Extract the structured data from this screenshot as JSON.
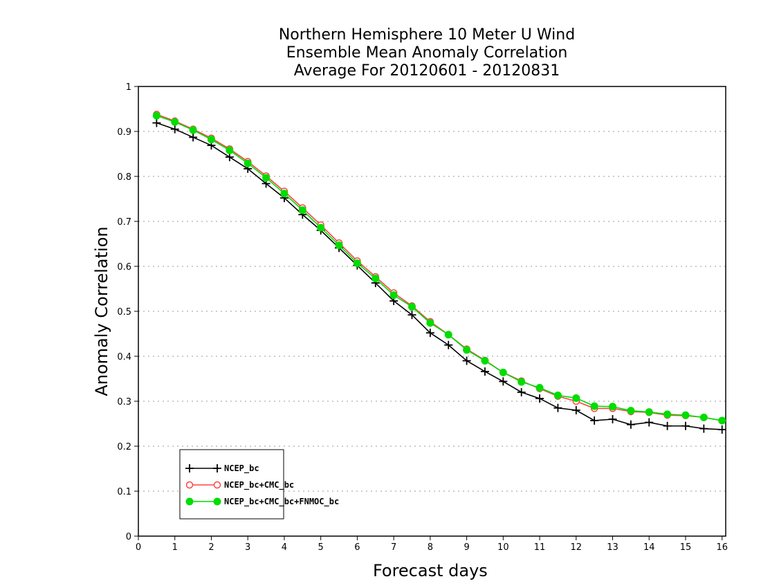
{
  "chart_data": {
    "type": "line",
    "title_lines": [
      "Northern Hemisphere 10 Meter U Wind",
      "Ensemble Mean Anomaly Correlation",
      "Average For 20120601 - 20120831"
    ],
    "xlabel": "Forecast days",
    "ylabel": "Anomaly Correlation",
    "xlim": [
      0,
      16.1
    ],
    "ylim": [
      0,
      1
    ],
    "xticks": [
      "0",
      "1",
      "2",
      "3",
      "4",
      "5",
      "6",
      "7",
      "8",
      "9",
      "10",
      "11",
      "12",
      "13",
      "14",
      "15",
      "16"
    ],
    "yticks": [
      "0",
      "0.1",
      "0.2",
      "0.3",
      "0.4",
      "0.5",
      "0.6",
      "0.7",
      "0.8",
      "0.9",
      "1"
    ],
    "grid": "horizontal-dotted",
    "legend_position": "bottom-left",
    "x": [
      0.5,
      1,
      1.5,
      2,
      2.5,
      3,
      3.5,
      4,
      4.5,
      5,
      5.5,
      6,
      6.5,
      7,
      7.5,
      8,
      8.5,
      9,
      9.5,
      10,
      10.5,
      11,
      11.5,
      12,
      12.5,
      13,
      13.5,
      14,
      14.5,
      15,
      15.5,
      16
    ],
    "series": [
      {
        "name": "NCEP_bc",
        "color": "#000000",
        "marker": "plus",
        "values": [
          0.919,
          0.905,
          0.887,
          0.869,
          0.843,
          0.817,
          0.784,
          0.752,
          0.715,
          0.68,
          0.641,
          0.602,
          0.563,
          0.523,
          0.492,
          0.452,
          0.425,
          0.39,
          0.366,
          0.344,
          0.32,
          0.306,
          0.285,
          0.28,
          0.257,
          0.26,
          0.248,
          0.253,
          0.245,
          0.245,
          0.239,
          0.237
        ]
      },
      {
        "name": "NCEP_bc+CMC_bc",
        "color": "#ff4444",
        "marker": "open-circle",
        "values": [
          0.938,
          0.923,
          0.905,
          0.885,
          0.861,
          0.833,
          0.801,
          0.767,
          0.73,
          0.692,
          0.652,
          0.612,
          0.577,
          0.541,
          0.512,
          0.477,
          0.448,
          0.416,
          0.391,
          0.364,
          0.345,
          0.328,
          0.311,
          0.3,
          0.284,
          0.284,
          0.277,
          0.275,
          0.269,
          0.268,
          0.264,
          0.257
        ]
      },
      {
        "name": "NCEP_bc+CMC_bc+FNMOC_bc",
        "color": "#00dd00",
        "marker": "filled-circle",
        "values": [
          0.935,
          0.921,
          0.903,
          0.882,
          0.858,
          0.829,
          0.797,
          0.762,
          0.725,
          0.686,
          0.647,
          0.607,
          0.573,
          0.536,
          0.51,
          0.474,
          0.448,
          0.414,
          0.39,
          0.364,
          0.343,
          0.33,
          0.313,
          0.307,
          0.289,
          0.288,
          0.279,
          0.276,
          0.271,
          0.269,
          0.264,
          0.257
        ]
      }
    ]
  }
}
